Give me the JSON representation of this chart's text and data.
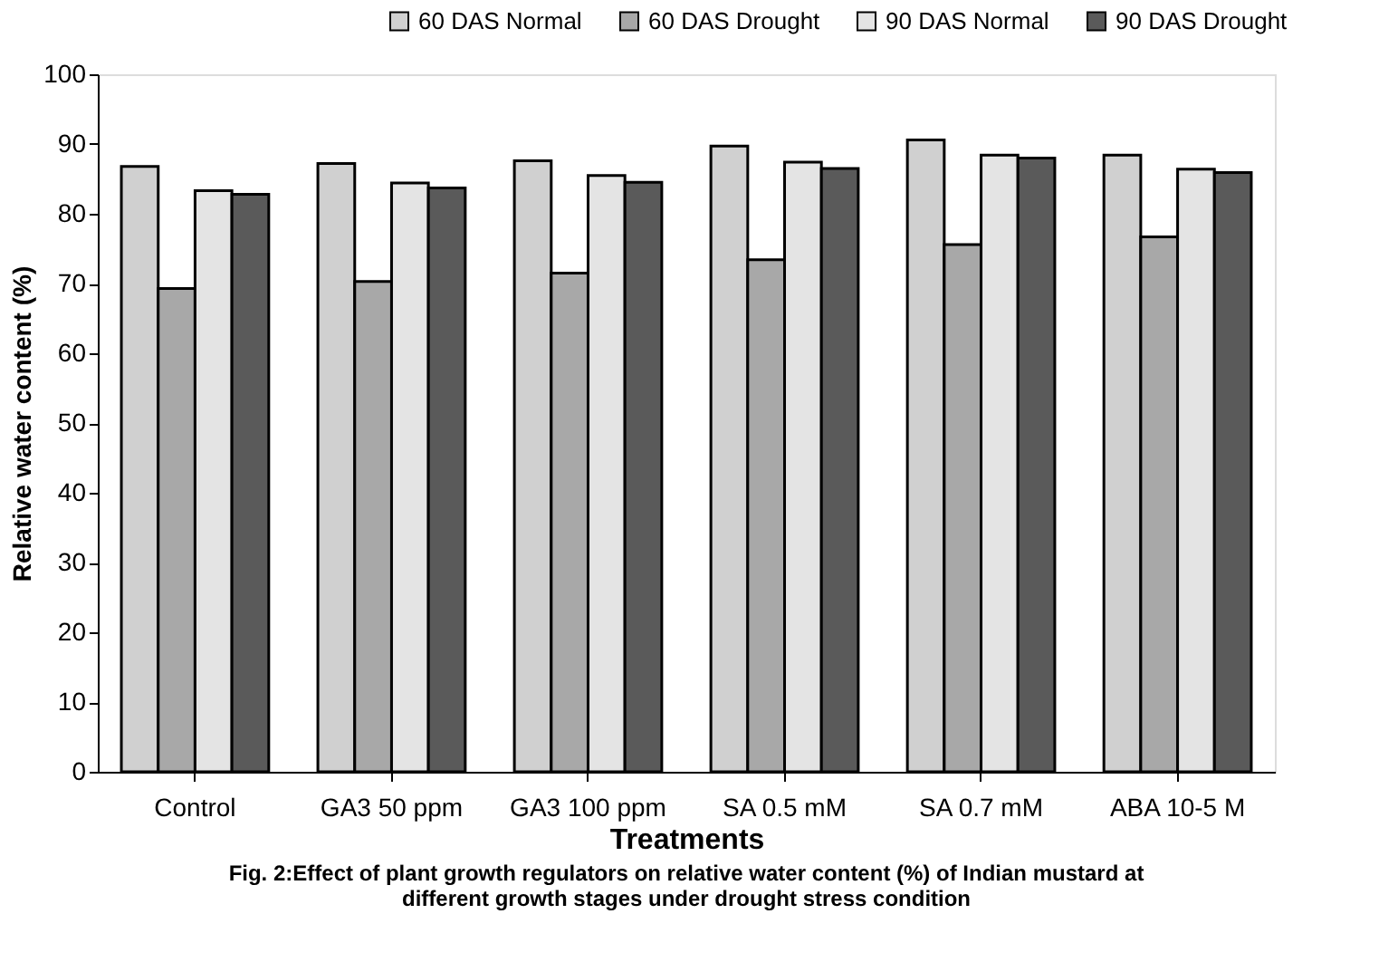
{
  "chart_data": {
    "type": "bar",
    "categories": [
      "Control",
      "GA3 50 ppm",
      "GA3 100 ppm",
      "SA 0.5 mM",
      "SA 0.7 mM",
      "ABA 10-5 M"
    ],
    "series": [
      {
        "name": "60 DAS Normal",
        "color": "#d0d0d0",
        "values": [
          86.8,
          87.2,
          87.6,
          89.7,
          90.6,
          88.4
        ]
      },
      {
        "name": "60 DAS Drought",
        "color": "#a8a8a8",
        "values": [
          69.3,
          70.3,
          71.5,
          73.4,
          75.6,
          76.7
        ]
      },
      {
        "name": "90 DAS Normal",
        "color": "#e4e4e4",
        "values": [
          83.3,
          84.4,
          85.5,
          87.4,
          88.4,
          86.4
        ]
      },
      {
        "name": "90 DAS Drought",
        "color": "#5a5a5a",
        "values": [
          82.8,
          83.7,
          84.5,
          86.5,
          88.0,
          85.9
        ]
      }
    ],
    "xlabel": "Treatments",
    "ylabel": "Relative water content (%)",
    "ylim": [
      0,
      100
    ],
    "yticks": [
      0,
      10,
      20,
      30,
      40,
      50,
      60,
      70,
      80,
      90,
      100
    ],
    "grid": false,
    "legend": "top right",
    "annotations": [
      "Fig. 2:Effect of plant growth regulators on relative water content (%) of Indian mustard at different growth stages under drought stress condition"
    ]
  }
}
